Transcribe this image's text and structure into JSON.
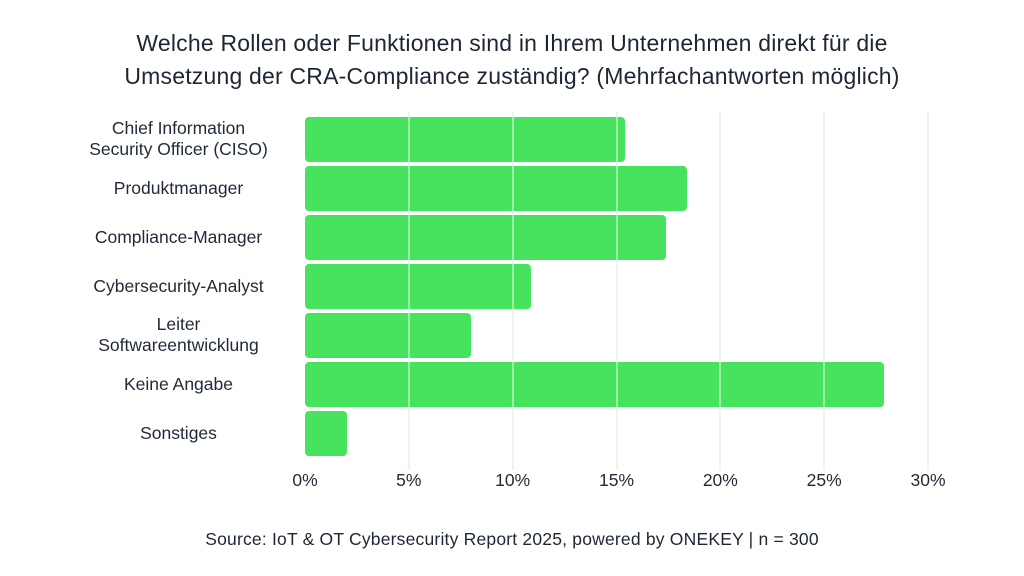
{
  "title": "Welche Rollen oder Funktionen sind in Ihrem Unternehmen direkt für die\nUmsetzung der CRA-Compliance zuständig? (Mehrfachantworten möglich)",
  "source": "Source: IoT & OT Cybersecurity Report 2025, powered by ONEKEY | n = 300",
  "colors": {
    "bar": "#47e35f",
    "text": "#1f2a37",
    "gridline": "#e7e7e7",
    "background": "#ffffff"
  },
  "chart_data": {
    "type": "bar",
    "orientation": "horizontal",
    "title": "Welche Rollen oder Funktionen sind in Ihrem Unternehmen direkt für die Umsetzung der CRA-Compliance zuständig? (Mehrfachantworten möglich)",
    "categories": [
      "Chief Information\nSecurity Officer (CISO)",
      "Produktmanager",
      "Compliance-Manager",
      "Cybersecurity-Analyst",
      "Leiter\nSoftwareentwicklung",
      "Keine Angabe",
      "Sonstiges"
    ],
    "values": [
      15.4,
      18.4,
      17.4,
      10.9,
      8.0,
      27.9,
      2.0
    ],
    "unit": "%",
    "xlabel": "",
    "ylabel": "",
    "xlim": [
      0,
      30
    ],
    "x_ticks": [
      0,
      5,
      10,
      15,
      20,
      25,
      30
    ],
    "x_tick_labels": [
      "0%",
      "5%",
      "10%",
      "15%",
      "20%",
      "25%",
      "30%"
    ],
    "grid": true,
    "gridlines_over_bars": true,
    "legend": false
  }
}
